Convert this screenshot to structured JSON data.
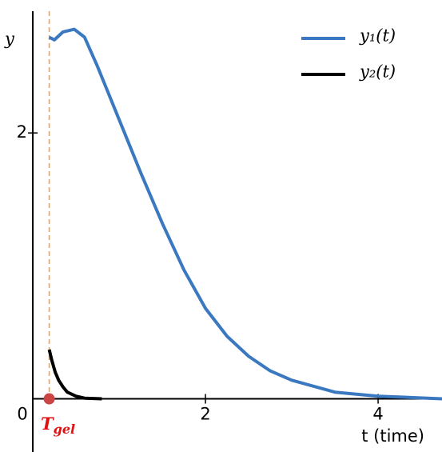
{
  "chart_data": {
    "type": "line",
    "x_label": "t (time)",
    "y_label": "y",
    "xlim": [
      -0.38,
      4.74
    ],
    "ylim": [
      -0.4,
      3.0
    ],
    "xticks": [
      0,
      2,
      4
    ],
    "yticks": [
      2
    ],
    "legend": "upper right",
    "vline": {
      "x": 0.19,
      "color": "#ff9933",
      "marker_color": "#cc4444",
      "label": "T",
      "label_sub": "gel",
      "label_color": "#dd1111"
    },
    "series": [
      {
        "name": "y₁(t)",
        "color": "#3a78c0",
        "x": [
          0.19,
          0.25,
          0.35,
          0.48,
          0.6,
          0.75,
          1.0,
          1.25,
          1.5,
          1.75,
          2.0,
          2.25,
          2.5,
          2.75,
          3.0,
          3.5,
          4.0,
          4.74
        ],
        "values": [
          2.72,
          2.7,
          2.76,
          2.78,
          2.72,
          2.5,
          2.1,
          1.7,
          1.32,
          0.97,
          0.68,
          0.47,
          0.32,
          0.21,
          0.14,
          0.05,
          0.02,
          0.0
        ]
      },
      {
        "name": "y₂(t)",
        "color": "#000000",
        "x": [
          0.19,
          0.22,
          0.26,
          0.3,
          0.35,
          0.4,
          0.5,
          0.6,
          0.8
        ],
        "values": [
          0.37,
          0.29,
          0.2,
          0.14,
          0.09,
          0.05,
          0.02,
          0.005,
          0.0
        ]
      }
    ]
  }
}
